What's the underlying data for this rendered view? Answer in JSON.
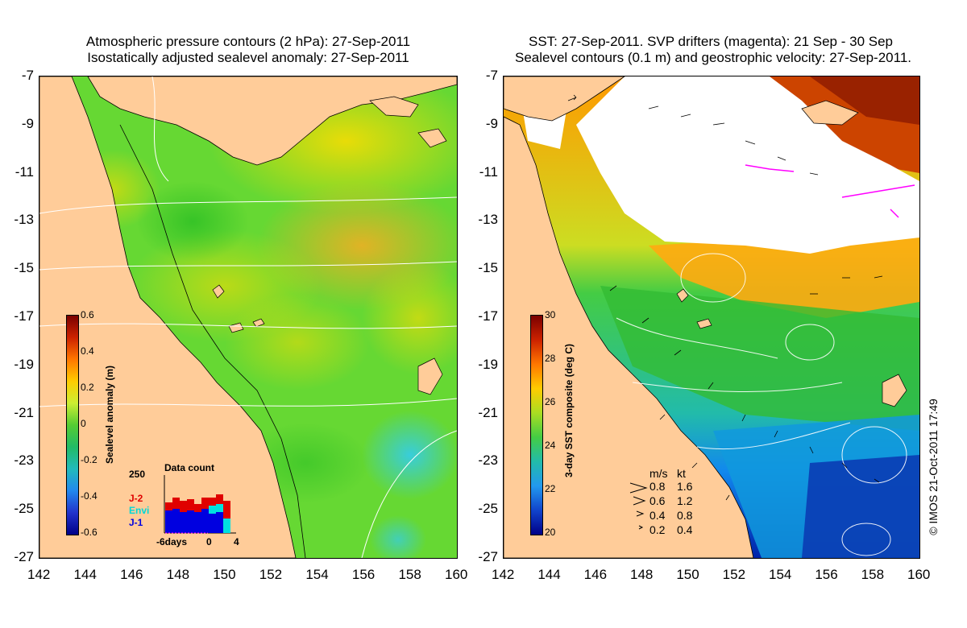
{
  "left_panel": {
    "title_line1": "Atmospheric pressure contours (2 hPa): 27-Sep-2011",
    "title_line2": "Isostatically adjusted sealevel anomaly: 27-Sep-2011",
    "colorbar": {
      "label": "Sealevel anomaly (m)",
      "ticks": [
        "0.6",
        "0.4",
        "0.2",
        "0",
        "-0.2",
        "-0.4",
        "-0.6"
      ],
      "range": [
        -0.6,
        0.6
      ]
    },
    "data_count": {
      "title": "Data count",
      "y_max_label": "250",
      "x_ticks": [
        "-6days",
        "0",
        "4"
      ],
      "legend": [
        {
          "label": "J-2",
          "color": "#e00000"
        },
        {
          "label": "Envi",
          "color": "#00e0e0"
        },
        {
          "label": "J-1",
          "color": "#0000e0"
        }
      ]
    }
  },
  "right_panel": {
    "title_line1": "SST: 27-Sep-2011. SVP drifters (magenta): 21 Sep - 30 Sep",
    "title_line2": "Sealevel contours (0.1 m) and geostrophic velocity: 27-Sep-2011.",
    "colorbar": {
      "label": "3-day SST composite (deg C)",
      "ticks": [
        "30",
        "28",
        "26",
        "24",
        "22",
        "20"
      ],
      "range": [
        20,
        30
      ]
    },
    "velocity_legend": {
      "header_ms": "m/s",
      "header_kt": "kt",
      "rows": [
        {
          "ms": "0.8",
          "kt": "1.6"
        },
        {
          "ms": "0.6",
          "kt": "1.2"
        },
        {
          "ms": "0.4",
          "kt": "0.8"
        },
        {
          "ms": "0.2",
          "kt": "0.4"
        }
      ]
    },
    "copyright": "© IMOS 21-Oct-2011 17:49"
  },
  "axes": {
    "lat_labels": [
      "-7",
      "-9",
      "-11",
      "-13",
      "-15",
      "-17",
      "-19",
      "-21",
      "-23",
      "-25",
      "-27"
    ],
    "lon_labels": [
      "142",
      "144",
      "146",
      "148",
      "150",
      "152",
      "154",
      "156",
      "158",
      "160"
    ]
  },
  "colors": {
    "land": "#ffcc99",
    "cloud": "#ffffff",
    "drifter": "#ff00ff"
  }
}
